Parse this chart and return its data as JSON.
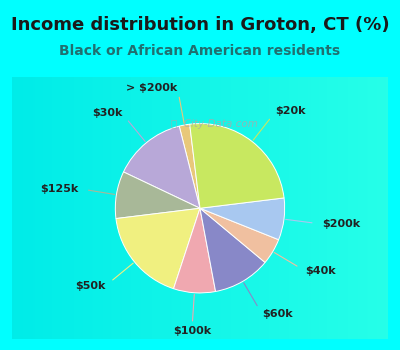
{
  "title": "Income distribution in Groton, CT (%)",
  "subtitle": "Black or African American residents",
  "background_color": "#00FFFF",
  "chart_bg_color_tl": "#d8f0e8",
  "chart_bg_color_br": "#e8f8f0",
  "labels": [
    "> $200k",
    "$30k",
    "$125k",
    "$50k",
    "$100k",
    "$60k",
    "$40k",
    "$200k",
    "$20k"
  ],
  "values": [
    2,
    14,
    9,
    18,
    8,
    11,
    5,
    8,
    25
  ],
  "colors": [
    "#e8c87a",
    "#b8a8d8",
    "#a8b898",
    "#f0f080",
    "#f0a8b0",
    "#8888c8",
    "#f0c0a0",
    "#a8c8f0",
    "#c8e860"
  ],
  "line_colors": [
    "#e8c87a",
    "#b8a8d8",
    "#a8b898",
    "#f0f080",
    "#f0a8b0",
    "#8888c8",
    "#f0c0a0",
    "#a8c8f0",
    "#c8e860"
  ],
  "title_fontsize": 13,
  "subtitle_fontsize": 10,
  "watermark": "City-Data.com",
  "label_fontsize": 8,
  "startangle": 97
}
